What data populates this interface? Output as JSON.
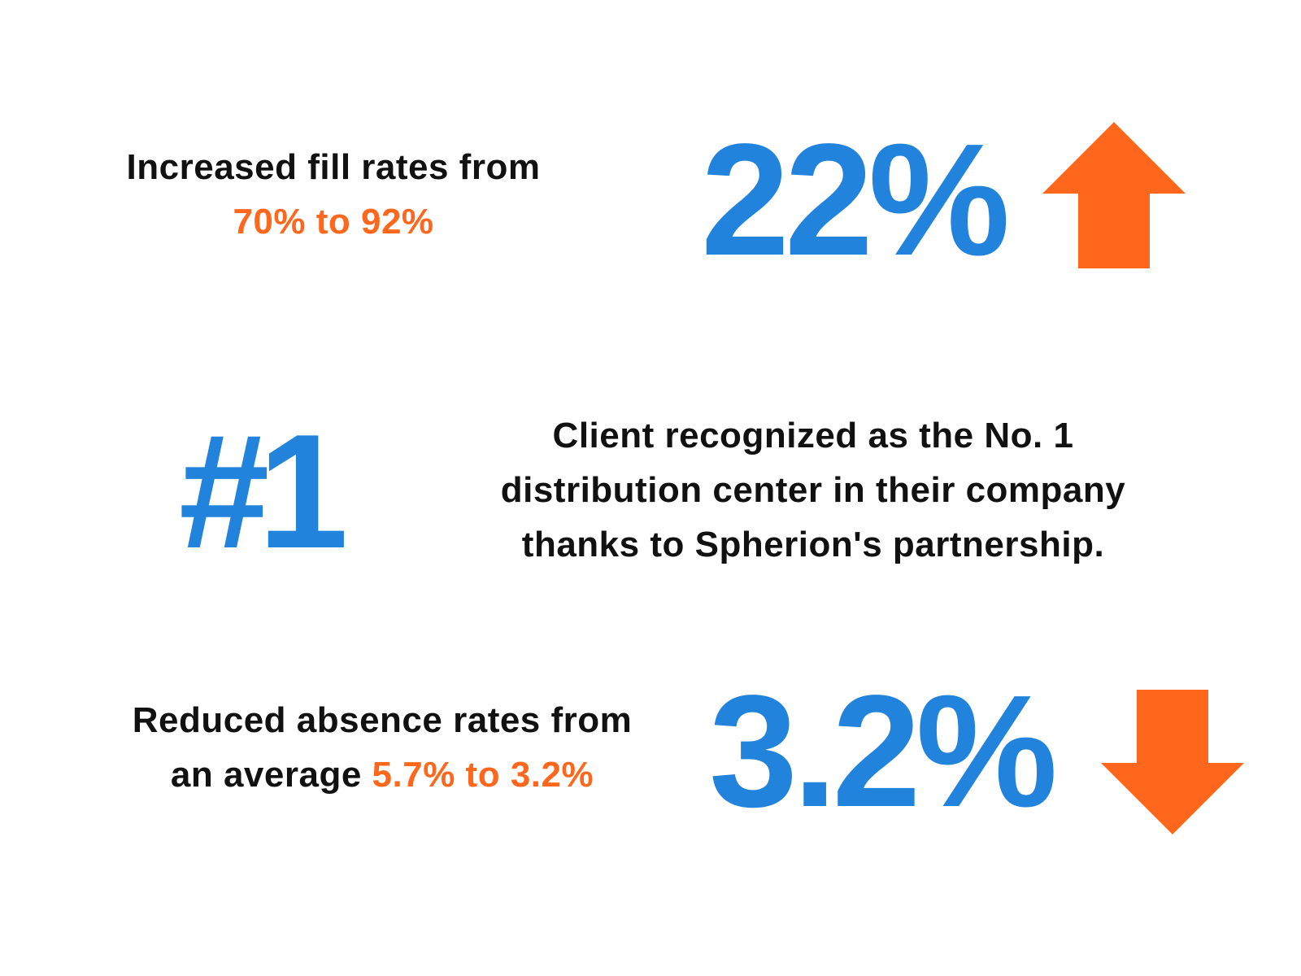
{
  "colors": {
    "accent_blue": "#2283dc",
    "accent_orange": "#ff671d",
    "text": "#111111"
  },
  "stat1": {
    "line1": "Increased fill rates from",
    "highlight": "70% to 92%",
    "big_value": "22%",
    "icon": "arrow-up-icon"
  },
  "stat2": {
    "big_value": "#1",
    "lines": [
      "Client recognized as the No. 1",
      "distribution center in their company",
      "thanks to Spherion's partnership."
    ]
  },
  "stat3": {
    "line1": "Reduced absence rates from",
    "line2_prefix": "an average ",
    "highlight": "5.7% to 3.2%",
    "big_value": "3.2%",
    "icon": "arrow-down-icon"
  }
}
